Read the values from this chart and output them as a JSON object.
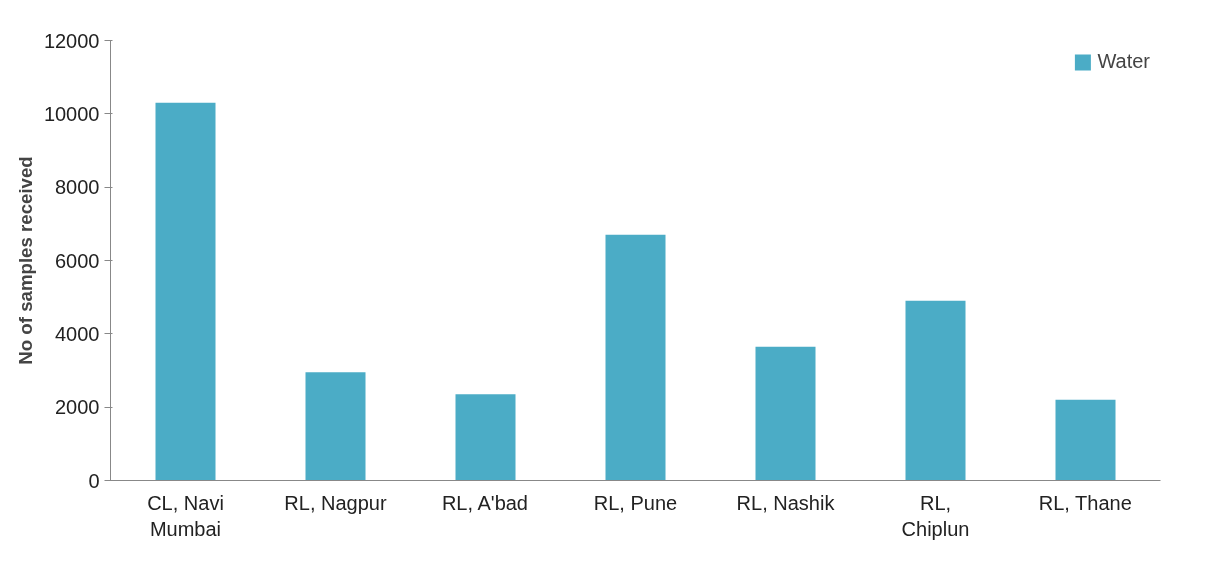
{
  "chart_data": {
    "type": "bar",
    "ylabel": "No of samples received",
    "categories": [
      "CL, Navi Mumbai",
      "RL, Nagpur",
      "RL, A'bad",
      "RL, Pune",
      "RL, Nashik",
      "RL, Chiplun",
      "RL, Thane"
    ],
    "series": [
      {
        "name": "Water",
        "color": "#4bacc6",
        "values": [
          10300,
          2950,
          2350,
          6700,
          3650,
          4900,
          2200
        ]
      }
    ],
    "ylim": [
      0,
      12000
    ],
    "yticks": [
      0,
      2000,
      4000,
      6000,
      8000,
      10000,
      12000
    ],
    "grid": false,
    "legend": "top right"
  }
}
